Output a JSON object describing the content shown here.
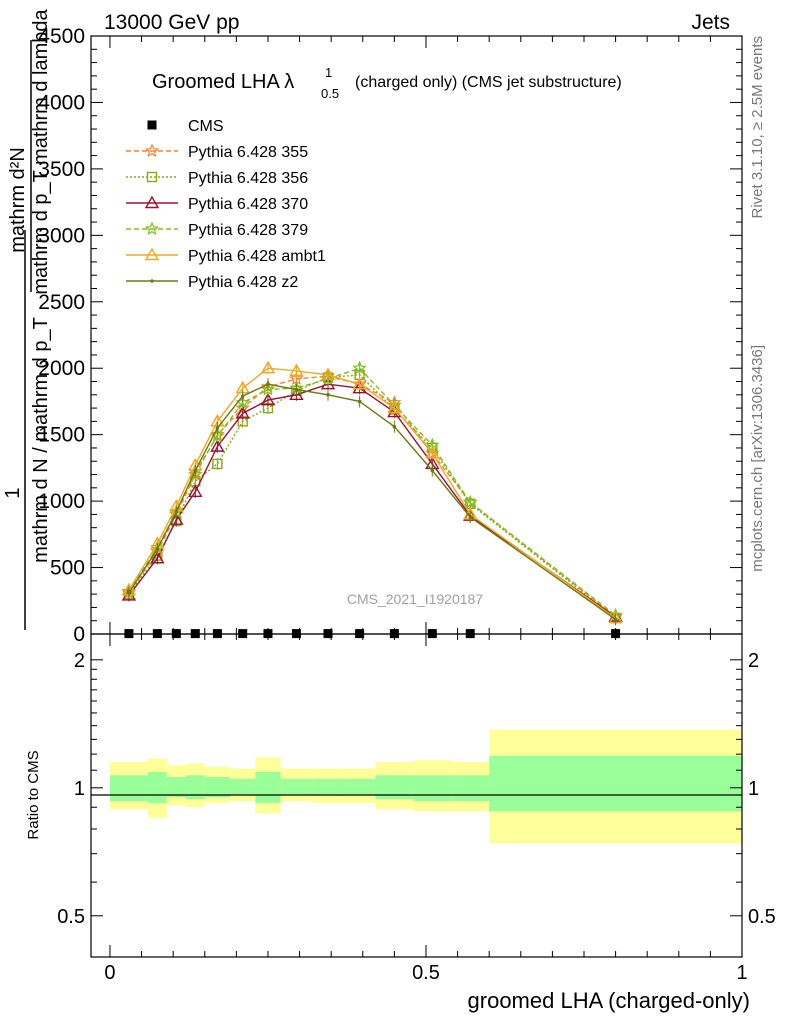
{
  "header": {
    "left": "13000 GeV pp",
    "right": "Jets"
  },
  "side": {
    "rivet": "Rivet 3.1.10, ≥ 2.5M events",
    "mcplots": "mcplots.cern.ch [arXiv:1306.3436]"
  },
  "watermark": "CMS_2021_I1920187",
  "main_ylabel": {
    "top_numer": "mathrm d²N",
    "top_denom": "mathrm d p_T mathrm d lambda",
    "one": "1",
    "bottom_denom": "mathrm d N / mathrm d p_T"
  },
  "ratio_ylabel": "Ratio to CMS",
  "xlabel": "groomed LHA (charged-only)",
  "title": {
    "main": "Groomed LHA λ",
    "sup": "1",
    "sub": "0.5",
    "rest": "(charged only) (CMS jet substructure)"
  },
  "chart_data": [
    {
      "type": "line",
      "panel": "main",
      "xlim": [
        -0.03,
        1.0
      ],
      "ylim": [
        0,
        4500
      ],
      "yticks": [
        0,
        500,
        1000,
        1500,
        2000,
        2500,
        3000,
        3500,
        4000,
        4500
      ],
      "ytick_labels": [
        "0",
        "500",
        "1000",
        "1500",
        "2000",
        "2500",
        "3000",
        "3500",
        "4000",
        "4500"
      ],
      "bins": [
        0.0,
        0.06,
        0.09,
        0.12,
        0.15,
        0.19,
        0.23,
        0.27,
        0.32,
        0.37,
        0.42,
        0.48,
        0.54,
        0.6,
        1.0
      ],
      "x": [
        0.03,
        0.075,
        0.105,
        0.135,
        0.17,
        0.21,
        0.25,
        0.295,
        0.345,
        0.395,
        0.45,
        0.51,
        0.57,
        0.8
      ],
      "series": [
        {
          "name": "CMS",
          "color": "#000000",
          "marker": "square",
          "values": [
            3,
            3,
            3,
            3,
            3,
            3,
            3,
            3,
            3,
            3,
            3,
            3,
            3,
            3
          ]
        },
        {
          "name": "Pythia 6.428 355",
          "color": "#ff7f2a",
          "marker": "star",
          "dash": "5,3",
          "values": [
            310,
            620,
            900,
            1200,
            1500,
            1700,
            1860,
            1920,
            1940,
            1880,
            1740,
            1360,
            990,
            130
          ]
        },
        {
          "name": "Pythia 6.428 356",
          "color": "#8aa61b",
          "marker": "open-square",
          "dash": "2,2",
          "values": [
            300,
            590,
            850,
            1150,
            1280,
            1600,
            1700,
            1830,
            1930,
            1950,
            1690,
            1400,
            980,
            120
          ]
        },
        {
          "name": "Pythia 6.428 370",
          "color": "#9b1030",
          "marker": "open-triangle",
          "dash": "",
          "values": [
            290,
            570,
            860,
            1070,
            1410,
            1660,
            1760,
            1800,
            1880,
            1850,
            1670,
            1280,
            890,
            130
          ]
        },
        {
          "name": "Pythia 6.428 379",
          "color": "#7cc11b",
          "marker": "star",
          "dash": "5,3",
          "values": [
            320,
            650,
            920,
            1220,
            1490,
            1740,
            1840,
            1850,
            1920,
            2000,
            1720,
            1420,
            990,
            140
          ]
        },
        {
          "name": "Pythia 6.428 ambt1",
          "color": "#f0a820",
          "marker": "open-triangle",
          "dash": "",
          "values": [
            330,
            680,
            960,
            1270,
            1600,
            1850,
            2000,
            1980,
            1950,
            1880,
            1700,
            1360,
            900,
            120
          ]
        },
        {
          "name": "Pythia 6.428 z2",
          "color": "#6b7a10",
          "marker": "dot",
          "dash": "",
          "values": [
            310,
            640,
            920,
            1230,
            1550,
            1790,
            1880,
            1840,
            1800,
            1750,
            1560,
            1230,
            880,
            110
          ]
        }
      ]
    },
    {
      "type": "area",
      "panel": "ratio",
      "xlim": [
        -0.03,
        1.0
      ],
      "ylim": [
        0.4,
        2.3
      ],
      "log_y": true,
      "yticks": [
        0.5,
        1,
        2
      ],
      "ytick_labels": [
        "0.5",
        "1",
        "2"
      ],
      "xticks": [
        0,
        0.5,
        1
      ],
      "xtick_labels": [
        "0",
        "0.5",
        "1"
      ],
      "bins": [
        0.0,
        0.06,
        0.09,
        0.12,
        0.15,
        0.19,
        0.23,
        0.27,
        0.32,
        0.37,
        0.42,
        0.48,
        0.54,
        0.6,
        1.0
      ],
      "inner_band_lo": [
        0.93,
        0.92,
        0.95,
        0.94,
        0.95,
        0.96,
        0.92,
        0.96,
        0.96,
        0.96,
        0.94,
        0.93,
        0.93,
        0.88
      ],
      "inner_band_hi": [
        1.07,
        1.09,
        1.06,
        1.07,
        1.06,
        1.05,
        1.09,
        1.05,
        1.05,
        1.05,
        1.07,
        1.07,
        1.07,
        1.19
      ],
      "outer_band_lo": [
        0.89,
        0.85,
        0.91,
        0.9,
        0.92,
        0.93,
        0.87,
        0.93,
        0.92,
        0.92,
        0.89,
        0.88,
        0.88,
        0.74
      ],
      "outer_band_hi": [
        1.15,
        1.17,
        1.13,
        1.14,
        1.12,
        1.11,
        1.18,
        1.11,
        1.11,
        1.11,
        1.15,
        1.16,
        1.15,
        1.37
      ],
      "inner_color": "#99ff99",
      "outer_color": "#ffff99"
    }
  ]
}
